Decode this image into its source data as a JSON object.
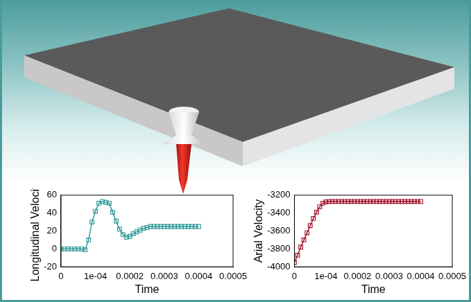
{
  "chart_data": [
    {
      "type": "line",
      "x_label": "Time",
      "y_label": "Longitudinal Velocity",
      "color": "#2e9a96",
      "marker": "square",
      "line_style": "solid",
      "grid": false,
      "xlim": [
        0,
        0.0005
      ],
      "xticks": [
        0,
        {
          "value": 0.0001,
          "label": "1e-04"
        },
        0.0002,
        0.0003,
        0.0004,
        0.0005
      ],
      "ylim": [
        -20,
        60
      ],
      "yticks": [
        -20,
        0,
        20,
        40,
        60
      ],
      "x": [
        0,
        1e-05,
        2e-05,
        3e-05,
        4e-05,
        5e-05,
        6e-05,
        7e-05,
        8e-05,
        9e-05,
        0.0001,
        0.00011,
        0.00012,
        0.00013,
        0.00014,
        0.00015,
        0.00016,
        0.00017,
        0.00018,
        0.00019,
        0.0002,
        0.00021,
        0.00022,
        0.00023,
        0.00024,
        0.00025,
        0.00026,
        0.00027,
        0.00028,
        0.00029,
        0.0003,
        0.00031,
        0.00032,
        0.00033,
        0.00034,
        0.00035,
        0.00036,
        0.00037,
        0.00038,
        0.00039,
        0.0004
      ],
      "values": [
        0,
        0,
        0,
        0,
        0,
        0,
        0,
        -1,
        10,
        30,
        42,
        51,
        53,
        52,
        51,
        41,
        31,
        22,
        16,
        13,
        14,
        17,
        19,
        21,
        23,
        24,
        25,
        25,
        25,
        25,
        25,
        25,
        25,
        25,
        25,
        25,
        25,
        25,
        25,
        25,
        25
      ]
    },
    {
      "type": "line",
      "x_label": "Time",
      "y_label": "Arial Velocity",
      "color": "#a3162e",
      "marker": "square",
      "line_style": "solid",
      "grid": false,
      "xlim": [
        0,
        0.0005
      ],
      "xticks": [
        0,
        {
          "value": 0.0001,
          "label": "1e-04"
        },
        0.0002,
        0.0003,
        0.0004,
        0.0005
      ],
      "ylim": [
        -4000,
        -3200
      ],
      "yticks": [
        -4000,
        -3800,
        -3600,
        -3400,
        -3200
      ],
      "x": [
        0,
        1e-05,
        2e-05,
        3e-05,
        4e-05,
        5e-05,
        6e-05,
        7e-05,
        8e-05,
        9e-05,
        0.0001,
        0.00011,
        0.00012,
        0.00013,
        0.00014,
        0.00015,
        0.00016,
        0.00017,
        0.00018,
        0.00019,
        0.0002,
        0.00021,
        0.00022,
        0.00023,
        0.00024,
        0.00025,
        0.00026,
        0.00027,
        0.00028,
        0.00029,
        0.0003,
        0.00031,
        0.00032,
        0.00033,
        0.00034,
        0.00035,
        0.00036,
        0.00037,
        0.00038,
        0.00039,
        0.0004
      ],
      "values": [
        -3950,
        -3870,
        -3780,
        -3700,
        -3620,
        -3540,
        -3460,
        -3390,
        -3330,
        -3290,
        -3275,
        -3270,
        -3270,
        -3270,
        -3270,
        -3270,
        -3270,
        -3270,
        -3270,
        -3270,
        -3270,
        -3270,
        -3270,
        -3270,
        -3270,
        -3270,
        -3270,
        -3270,
        -3270,
        -3270,
        -3270,
        -3270,
        -3270,
        -3270,
        -3270,
        -3270,
        -3270,
        -3270,
        -3270,
        -3270,
        -3270
      ]
    }
  ]
}
